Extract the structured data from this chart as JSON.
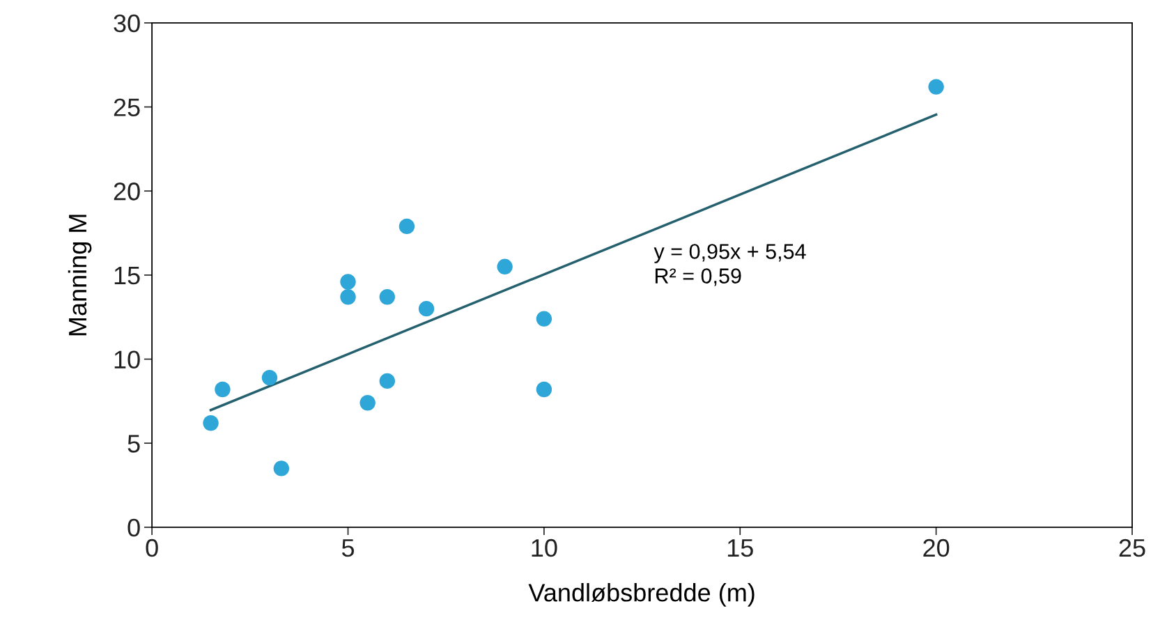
{
  "chart_data": {
    "type": "scatter",
    "xlabel": "Vandløbsbredde (m)",
    "ylabel": "Manning M",
    "xlim": [
      0,
      25
    ],
    "ylim": [
      0,
      30
    ],
    "xticks": [
      0,
      5,
      10,
      15,
      20,
      25
    ],
    "yticks": [
      0,
      5,
      10,
      15,
      20,
      25,
      30
    ],
    "grid": false,
    "legend": false,
    "marker": "circle",
    "annotations": [
      "y = 0,95x + 5,54\nR² = 0,59"
    ],
    "series": [
      {
        "color": "#2ea6d8",
        "x": [
          1.5,
          1.8,
          3.0,
          3.3,
          5.0,
          5.0,
          5.5,
          6.0,
          6.0,
          6.5,
          7.0,
          9.0,
          10.0,
          10.0,
          20.0
        ],
        "values": [
          6.2,
          8.2,
          8.9,
          3.5,
          14.6,
          13.7,
          7.4,
          8.7,
          13.7,
          17.9,
          13.0,
          15.5,
          12.4,
          8.2,
          26.2
        ]
      },
      {
        "type": "line",
        "color": "#24606e",
        "x": [
          1.5,
          20.0
        ],
        "values": [
          6.97,
          24.54
        ],
        "line_style": "solid",
        "marker": "none"
      }
    ]
  }
}
